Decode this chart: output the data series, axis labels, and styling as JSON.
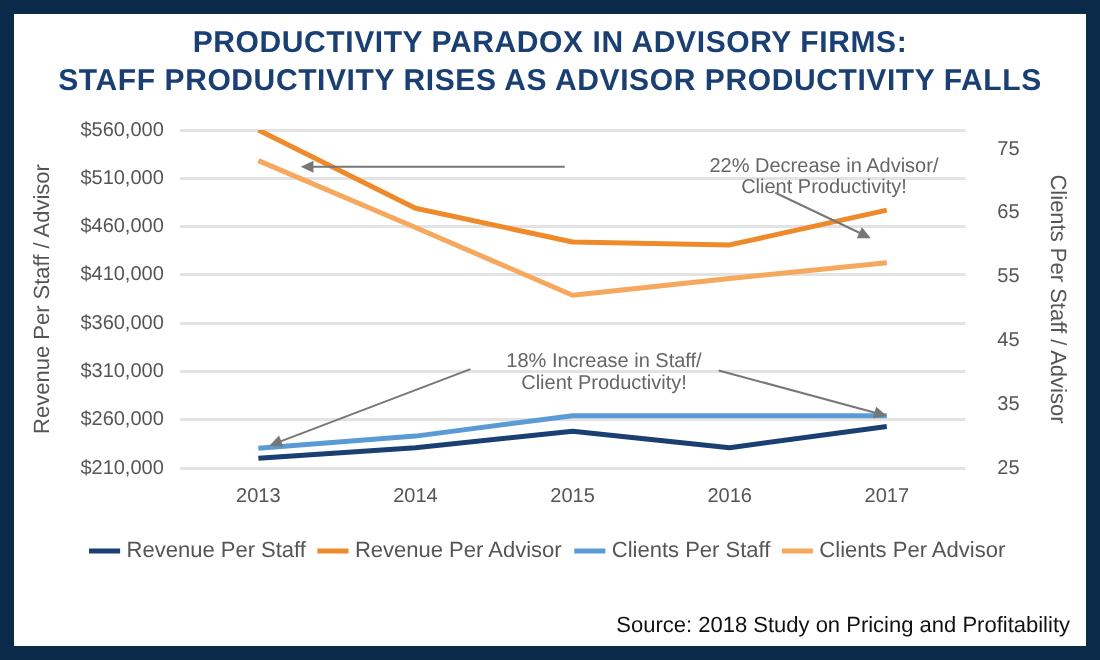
{
  "chart_data": {
    "type": "line",
    "title": "PRODUCTIVITY PARADOX IN ADVISORY FIRMS:\nSTAFF PRODUCTIVITY RISES AS ADVISOR PRODUCTIVITY FALLS",
    "categories": [
      "2013",
      "2014",
      "2015",
      "2016",
      "2017"
    ],
    "ylabel": "Revenue Per Staff / Advisor",
    "y2label": "Clients Per Staff / Advisor",
    "series": [
      {
        "name": "Revenue Per Staff",
        "color": "#1a3f73",
        "values": [
          220000,
          231000,
          248000,
          231000,
          253000
        ]
      },
      {
        "name": "Revenue Per Advisor",
        "color": "#ef8a2a",
        "values": [
          560000,
          479000,
          444000,
          441000,
          477000
        ]
      },
      {
        "name": "Clients Per Staff",
        "color": "#5b9bd5",
        "axis": "y2",
        "values": [
          28.1,
          30.0,
          33.2,
          33.2,
          33.2
        ]
      },
      {
        "name": "Clients Per Advisor",
        "color": "#f5a85e",
        "axis": "y2",
        "values": [
          73.2,
          62.7,
          52.1,
          54.7,
          57.2
        ]
      }
    ],
    "ylim": [
      210000,
      560000
    ],
    "yticks": [
      {
        "value": 210000,
        "label": "$210,000"
      },
      {
        "value": 260000,
        "label": "$260,000"
      },
      {
        "value": 310000,
        "label": "$310,000"
      },
      {
        "value": 360000,
        "label": "$360,000"
      },
      {
        "value": 410000,
        "label": "$410,000"
      },
      {
        "value": 460000,
        "label": "$460,000"
      },
      {
        "value": 510000,
        "label": "$510,000"
      },
      {
        "value": 560000,
        "label": "$560,000"
      }
    ],
    "y2lim": [
      25,
      78
    ],
    "y2ticks": [
      25,
      35,
      45,
      55,
      65,
      75
    ],
    "grid": "y",
    "legend": "bottom",
    "marker": "none",
    "line_style": "solid",
    "annotations": [
      {
        "text": "22% Decrease in Advisor/\nClient Productivity!",
        "x": "2017",
        "y": 477000
      },
      {
        "text": "18% Increase in Staff/\nClient Productivity!",
        "x": "2017",
        "y": 264000
      },
      "Source: 2018 Study on Pricing and Profitability"
    ]
  }
}
